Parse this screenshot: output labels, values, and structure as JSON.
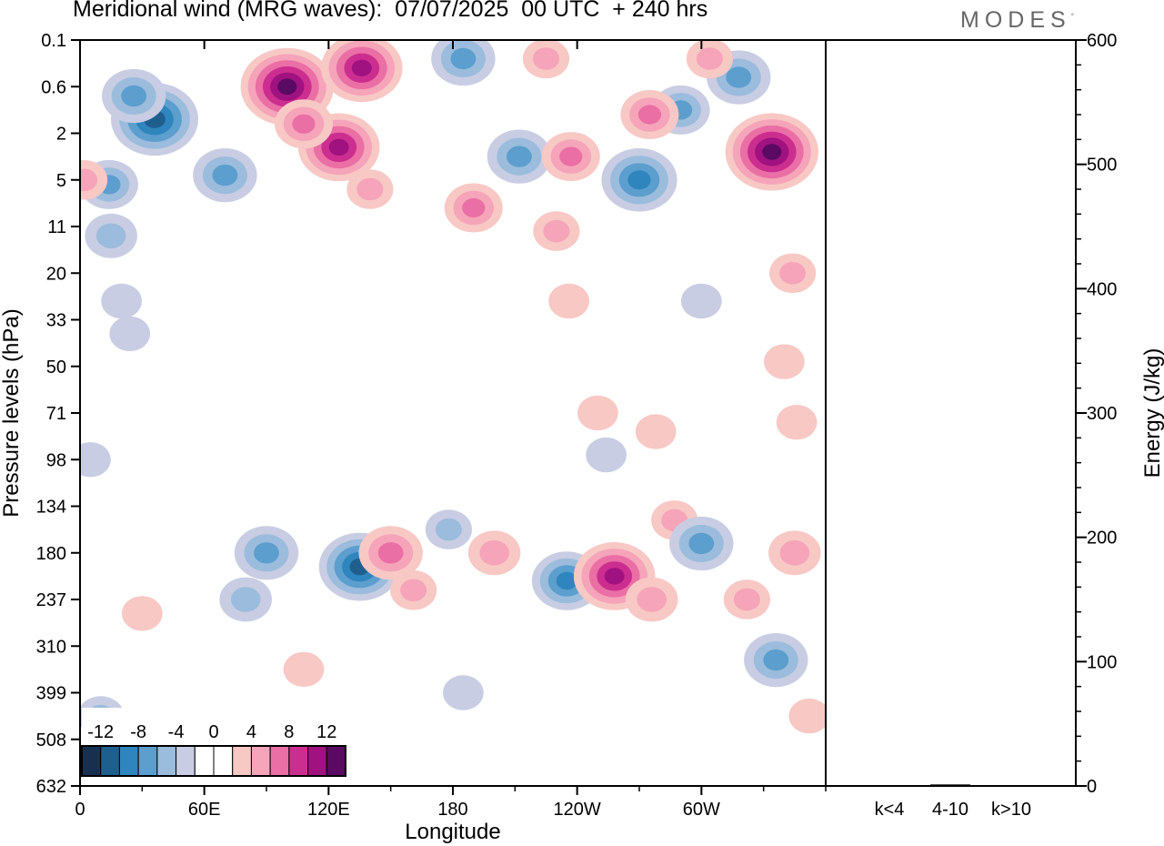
{
  "title": "Meridional wind (MRG waves):  07/07/2025  00 UTC  + 240 hrs",
  "brand": "MODES",
  "brand_mark": "°",
  "colors": {
    "levels": [
      "#17304f",
      "#1f5f8e",
      "#2f85bd",
      "#5c9ecd",
      "#9bbcdc",
      "#c8cde3",
      "#ffffff",
      "#ffffff",
      "#f8c8c5",
      "#f5a4b9",
      "#ea6fa5",
      "#cc2e8f",
      "#9f1280",
      "#5a0a62"
    ]
  },
  "chart_data": [
    {
      "type": "heatmap",
      "title": "Meridional wind (MRG waves):  07/07/2025  00 UTC  + 240 hrs",
      "xlabel": "Longitude",
      "ylabel": "Pressure levels (hPa)",
      "x_ticks": [
        "0",
        "60E",
        "120E",
        "180",
        "120W",
        "60W"
      ],
      "x_tick_degrees": [
        0,
        60,
        120,
        180,
        240,
        300
      ],
      "xlim": [
        0,
        360
      ],
      "y_ticks": [
        "0.1",
        "0.6",
        "2",
        "5",
        "11",
        "20",
        "33",
        "50",
        "71",
        "98",
        "134",
        "180",
        "237",
        "310",
        "399",
        "508",
        "632"
      ],
      "colorbar": {
        "labels": [
          "-12",
          "-8",
          "-4",
          "0",
          "4",
          "8",
          "12"
        ],
        "boundaries": [
          -14,
          -12,
          -10,
          -8,
          -6,
          -4,
          -2,
          0,
          2,
          4,
          6,
          8,
          10,
          12,
          14
        ]
      },
      "features": [
        {
          "lon": 14,
          "y": 3.1,
          "v": -5
        },
        {
          "lon": 36,
          "y": 1.7,
          "v": -10
        },
        {
          "lon": 26,
          "y": 1.2,
          "v": -6
        },
        {
          "lon": 70,
          "y": 2.9,
          "v": -6
        },
        {
          "lon": 15,
          "y": 4.2,
          "v": -4
        },
        {
          "lon": 20,
          "y": 5.6,
          "v": -2
        },
        {
          "lon": 24,
          "y": 6.3,
          "v": -2
        },
        {
          "lon": 100,
          "y": 1.0,
          "v": 11
        },
        {
          "lon": 136,
          "y": 0.6,
          "v": 9
        },
        {
          "lon": 125,
          "y": 2.3,
          "v": 9
        },
        {
          "lon": 108,
          "y": 1.8,
          "v": 5
        },
        {
          "lon": 140,
          "y": 3.2,
          "v": 3
        },
        {
          "lon": 2,
          "y": 3.0,
          "v": 3
        },
        {
          "lon": 185,
          "y": 0.4,
          "v": -6
        },
        {
          "lon": 190,
          "y": 3.6,
          "v": 5
        },
        {
          "lon": 212,
          "y": 2.5,
          "v": -6
        },
        {
          "lon": 237,
          "y": 2.5,
          "v": 5
        },
        {
          "lon": 225,
          "y": 0.4,
          "v": 3
        },
        {
          "lon": 270,
          "y": 3.0,
          "v": -8
        },
        {
          "lon": 290,
          "y": 1.5,
          "v": -5
        },
        {
          "lon": 318,
          "y": 0.8,
          "v": -6
        },
        {
          "lon": 275,
          "y": 1.6,
          "v": 5
        },
        {
          "lon": 334,
          "y": 2.4,
          "v": 11
        },
        {
          "lon": 304,
          "y": 0.4,
          "v": 3
        },
        {
          "lon": 230,
          "y": 4.1,
          "v": 3
        },
        {
          "lon": 236,
          "y": 5.6,
          "v": 2
        },
        {
          "lon": 300,
          "y": 5.6,
          "v": -2
        },
        {
          "lon": 344,
          "y": 5.0,
          "v": 3
        },
        {
          "lon": 340,
          "y": 6.9,
          "v": 2
        },
        {
          "lon": 250,
          "y": 8.0,
          "v": 2
        },
        {
          "lon": 278,
          "y": 8.4,
          "v": 2
        },
        {
          "lon": 254,
          "y": 8.9,
          "v": -2
        },
        {
          "lon": 346,
          "y": 8.2,
          "v": 2
        },
        {
          "lon": 90,
          "y": 11.0,
          "v": -6
        },
        {
          "lon": 80,
          "y": 12.0,
          "v": -4
        },
        {
          "lon": 135,
          "y": 11.3,
          "v": -9
        },
        {
          "lon": 150,
          "y": 11.0,
          "v": 6
        },
        {
          "lon": 161,
          "y": 11.8,
          "v": 3
        },
        {
          "lon": 178,
          "y": 10.5,
          "v": -3
        },
        {
          "lon": 200,
          "y": 11.0,
          "v": 4
        },
        {
          "lon": 235,
          "y": 11.6,
          "v": -7
        },
        {
          "lon": 258,
          "y": 11.5,
          "v": 9
        },
        {
          "lon": 276,
          "y": 12.0,
          "v": 4
        },
        {
          "lon": 287,
          "y": 10.3,
          "v": 3
        },
        {
          "lon": 300,
          "y": 10.8,
          "v": -6
        },
        {
          "lon": 322,
          "y": 12.0,
          "v": 3
        },
        {
          "lon": 336,
          "y": 13.3,
          "v": -6
        },
        {
          "lon": 345,
          "y": 11.0,
          "v": 4
        },
        {
          "lon": 10,
          "y": 14.5,
          "v": -3
        },
        {
          "lon": 30,
          "y": 12.3,
          "v": 2
        },
        {
          "lon": 108,
          "y": 13.5,
          "v": 2
        },
        {
          "lon": 185,
          "y": 14.0,
          "v": -2
        },
        {
          "lon": 352,
          "y": 14.5,
          "v": 2
        },
        {
          "lon": 5,
          "y": 9.0,
          "v": -2
        }
      ]
    },
    {
      "type": "bar",
      "ylabel": "Energy (J/kg)",
      "ylim": [
        0,
        600
      ],
      "y_ticks": [
        "0",
        "100",
        "200",
        "300",
        "400",
        "500",
        "600"
      ],
      "categories": [
        "k<4",
        "4-10",
        "k>10"
      ],
      "values": [
        0.3,
        1.5,
        0.2
      ]
    }
  ]
}
